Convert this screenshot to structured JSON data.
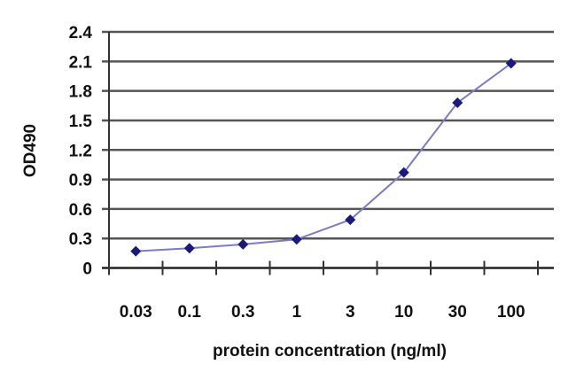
{
  "chart_data": {
    "type": "line",
    "title": "",
    "xlabel": "protein concentration (ng/ml)",
    "ylabel": "OD490",
    "categories": [
      "0.03",
      "0.1",
      "0.3",
      "1",
      "3",
      "10",
      "30",
      "100"
    ],
    "values": [
      0.17,
      0.2,
      0.24,
      0.29,
      0.49,
      0.97,
      1.68,
      2.08
    ],
    "yticks": [
      "0",
      "0.3",
      "0.6",
      "0.9",
      "1.2",
      "1.5",
      "1.8",
      "2.1",
      "2.4"
    ],
    "ylim": [
      0,
      2.4
    ],
    "grid": true,
    "legend": "none",
    "colors": {
      "line": "#7b7bc8",
      "marker": "#1a1a7a",
      "grid": "#555555"
    }
  }
}
